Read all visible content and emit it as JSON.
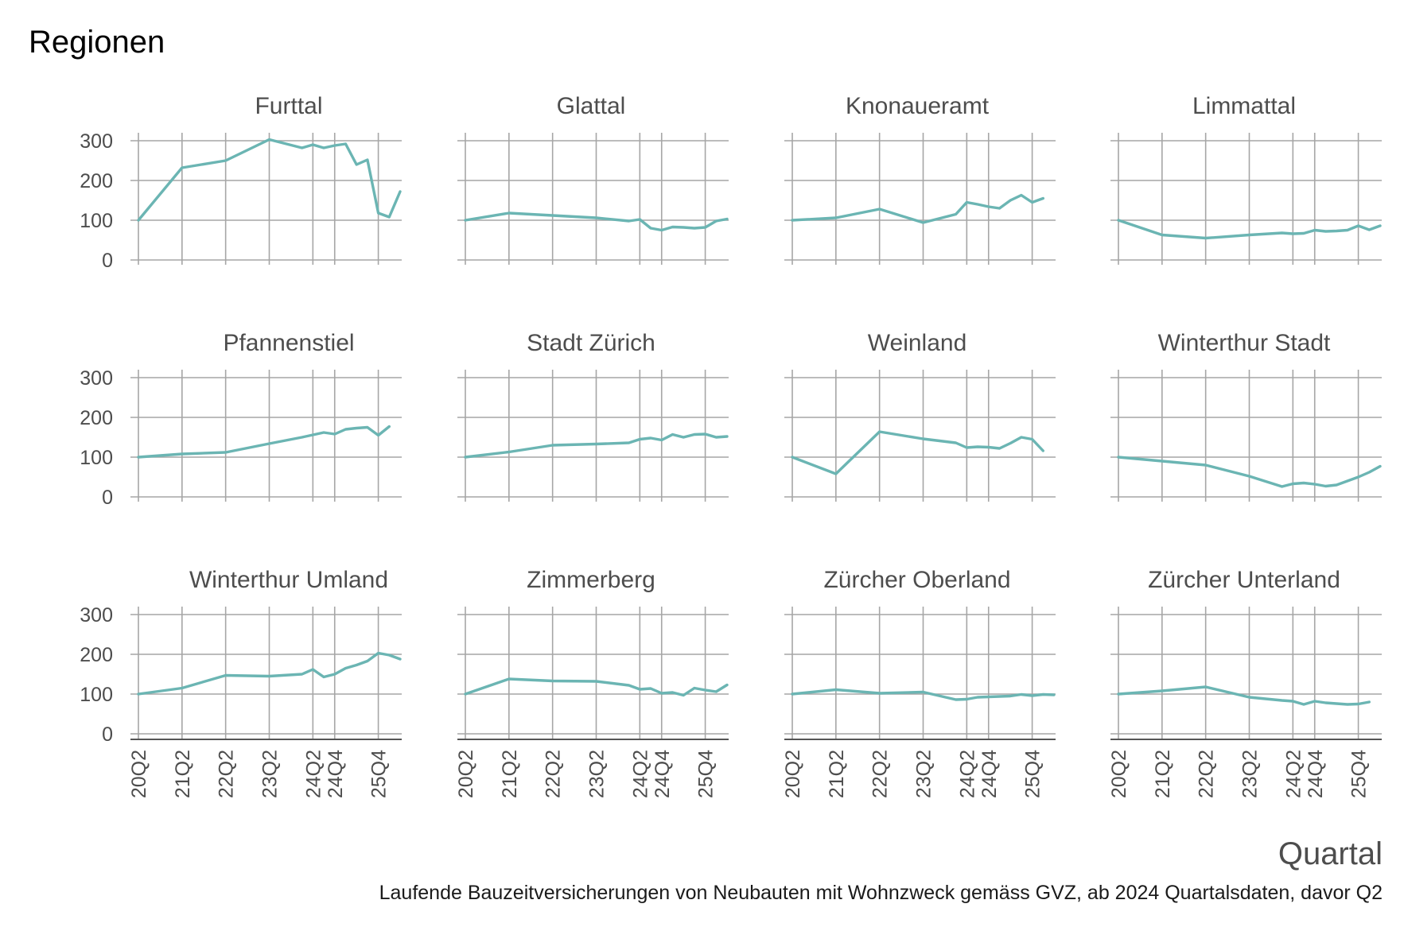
{
  "chart_data": {
    "type": "line",
    "title": "Regionen",
    "xlabel": "Quartal",
    "caption": "Laufende Bauzeitversicherungen von Neubauten mit Wohnzweck gemäss GVZ, ab 2024 Quartalsdaten, davor Q2",
    "ylim": [
      0,
      300
    ],
    "yticks": [
      0,
      100,
      200,
      300
    ],
    "xlim": [
      2020.25,
      2026.25
    ],
    "xticks": [
      {
        "label": "20Q2",
        "x": 2020.25
      },
      {
        "label": "21Q2",
        "x": 2021.25
      },
      {
        "label": "22Q2",
        "x": 2022.25
      },
      {
        "label": "23Q2",
        "x": 2023.25
      },
      {
        "label": "24Q2",
        "x": 2024.25
      },
      {
        "label": "24Q4",
        "x": 2024.75
      },
      {
        "label": "25Q4",
        "x": 2025.75
      }
    ],
    "line_color": "#6bb5b3",
    "grid": true,
    "x": [
      2020.25,
      2021.25,
      2022.25,
      2023.25,
      2024.0,
      2024.25,
      2024.5,
      2024.75,
      2025.0,
      2025.25,
      2025.5,
      2025.75,
      2026.0,
      2026.25
    ],
    "panels": [
      {
        "name": "Furttal",
        "values": [
          100,
          232,
          250,
          303,
          282,
          290,
          282,
          288,
          292,
          240,
          252,
          118,
          108,
          172
        ]
      },
      {
        "name": "Glattal",
        "values": [
          100,
          118,
          112,
          106,
          98,
          102,
          80,
          75,
          83,
          82,
          80,
          82,
          98,
          103
        ]
      },
      {
        "name": "Knonaueramt",
        "values": [
          100,
          106,
          128,
          94,
          115,
          145,
          140,
          134,
          130,
          150,
          163,
          145,
          155,
          null
        ]
      },
      {
        "name": "Limmattal",
        "values": [
          100,
          63,
          55,
          63,
          68,
          66,
          67,
          75,
          72,
          73,
          75,
          86,
          76,
          86
        ]
      },
      {
        "name": "Pfannenstiel",
        "values": [
          100,
          108,
          112,
          134,
          150,
          156,
          162,
          158,
          170,
          173,
          175,
          155,
          177,
          null
        ]
      },
      {
        "name": "Stadt Zürich",
        "values": [
          100,
          113,
          130,
          133,
          136,
          145,
          148,
          143,
          157,
          150,
          157,
          158,
          150,
          152
        ]
      },
      {
        "name": "Weinland",
        "values": [
          100,
          58,
          164,
          146,
          136,
          124,
          126,
          125,
          122,
          135,
          150,
          145,
          116,
          null
        ]
      },
      {
        "name": "Winterthur Stadt",
        "values": [
          100,
          90,
          80,
          52,
          26,
          33,
          35,
          32,
          27,
          30,
          40,
          50,
          62,
          77
        ]
      },
      {
        "name": "Winterthur Umland",
        "values": [
          100,
          115,
          147,
          145,
          150,
          162,
          143,
          150,
          165,
          173,
          183,
          203,
          198,
          188
        ]
      },
      {
        "name": "Zimmerberg",
        "values": [
          100,
          138,
          133,
          132,
          122,
          112,
          114,
          102,
          104,
          97,
          115,
          110,
          106,
          123
        ]
      },
      {
        "name": "Zürcher Oberland",
        "values": [
          100,
          111,
          102,
          105,
          86,
          87,
          92,
          93,
          94,
          95,
          99,
          96,
          99,
          98
        ]
      },
      {
        "name": "Zürcher Unterland",
        "values": [
          100,
          108,
          118,
          92,
          84,
          82,
          74,
          82,
          78,
          76,
          74,
          75,
          80,
          null
        ]
      }
    ]
  }
}
